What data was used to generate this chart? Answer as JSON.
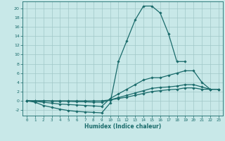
{
  "xlabel": "Humidex (Indice chaleur)",
  "xlim": [
    -0.5,
    23.5
  ],
  "ylim": [
    -3.2,
    21.5
  ],
  "yticks": [
    -2,
    0,
    2,
    4,
    6,
    8,
    10,
    12,
    14,
    16,
    18,
    20
  ],
  "xticks": [
    0,
    1,
    2,
    3,
    4,
    5,
    6,
    7,
    8,
    9,
    10,
    11,
    12,
    13,
    14,
    15,
    16,
    17,
    18,
    19,
    20,
    21,
    22,
    23
  ],
  "bg_color": "#c8e8e8",
  "line_color": "#1a6b6b",
  "grid_color": "#a0c8c8",
  "lines": [
    {
      "x": [
        0,
        1,
        2,
        3,
        4,
        5,
        6,
        7,
        8,
        9,
        10,
        11,
        12,
        13,
        14,
        15,
        16,
        17,
        18,
        19
      ],
      "y": [
        0,
        -0.3,
        -1.0,
        -1.4,
        -1.8,
        -2.1,
        -2.3,
        -2.4,
        -2.5,
        -2.6,
        -0.5,
        8.5,
        13.0,
        17.5,
        20.5,
        20.5,
        19.0,
        14.5,
        8.5,
        8.5
      ]
    },
    {
      "x": [
        0,
        1,
        2,
        3,
        4,
        5,
        6,
        7,
        8,
        9,
        10,
        11,
        12,
        13,
        14,
        15,
        16,
        17,
        18,
        19,
        20,
        21,
        22,
        23
      ],
      "y": [
        0,
        -0.1,
        -0.3,
        -0.5,
        -0.7,
        -0.8,
        -0.9,
        -1.0,
        -1.1,
        -1.2,
        0.5,
        1.5,
        2.5,
        3.5,
        4.5,
        5.0,
        5.0,
        5.5,
        6.0,
        6.5,
        6.5,
        4.0,
        2.5,
        2.5
      ]
    },
    {
      "x": [
        0,
        1,
        2,
        3,
        4,
        5,
        6,
        7,
        8,
        9,
        10,
        11,
        12,
        13,
        14,
        15,
        16,
        17,
        18,
        19,
        20,
        21,
        22,
        23
      ],
      "y": [
        0,
        0,
        0,
        -0.1,
        -0.1,
        -0.1,
        -0.2,
        -0.2,
        -0.3,
        -0.3,
        0.2,
        0.7,
        1.2,
        1.7,
        2.2,
        2.7,
        2.9,
        3.0,
        3.2,
        3.5,
        3.5,
        3.0,
        2.5,
        2.5
      ]
    },
    {
      "x": [
        0,
        1,
        2,
        3,
        4,
        5,
        6,
        7,
        8,
        9,
        10,
        11,
        12,
        13,
        14,
        15,
        16,
        17,
        18,
        19,
        20,
        21,
        22,
        23
      ],
      "y": [
        0,
        0,
        0,
        0,
        0,
        0,
        0,
        0,
        0,
        0,
        0.2,
        0.5,
        0.8,
        1.2,
        1.6,
        2.0,
        2.2,
        2.4,
        2.5,
        2.8,
        2.8,
        2.5,
        2.5,
        2.5
      ]
    }
  ]
}
